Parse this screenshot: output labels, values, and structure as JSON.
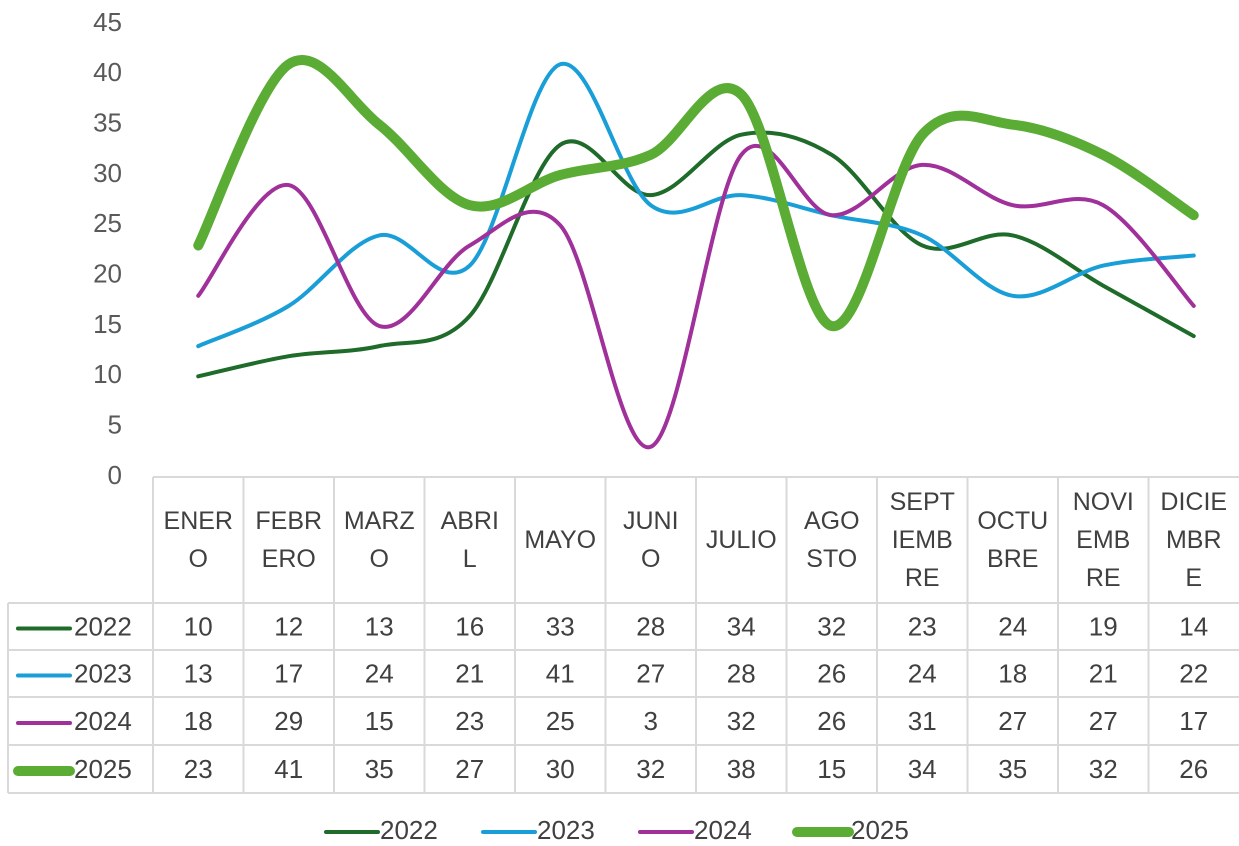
{
  "chart_data": {
    "type": "line",
    "categories": [
      "ENERO",
      "FEBRERO",
      "MARZO",
      "ABRIL",
      "MAYO",
      "JUNIO",
      "JULIO",
      "AGOSTO",
      "SEPTIEMBRE",
      "OCTUBRE",
      "NOVIEMBRE",
      "DICIEMBRE"
    ],
    "series": [
      {
        "name": "2022",
        "color": "#1e6b2a",
        "width": 4,
        "values": [
          10,
          12,
          13,
          16,
          33,
          28,
          34,
          32,
          23,
          24,
          19,
          14
        ]
      },
      {
        "name": "2023",
        "color": "#1a9ed8",
        "width": 4,
        "values": [
          13,
          17,
          24,
          21,
          41,
          27,
          28,
          26,
          24,
          18,
          21,
          22
        ]
      },
      {
        "name": "2024",
        "color": "#a0309a",
        "width": 4,
        "values": [
          18,
          29,
          15,
          23,
          25,
          3,
          32,
          26,
          31,
          27,
          27,
          17
        ]
      },
      {
        "name": "2025",
        "color": "#5aac34",
        "width": 10,
        "values": [
          23,
          41,
          35,
          27,
          30,
          32,
          38,
          15,
          34,
          35,
          32,
          26
        ]
      }
    ],
    "ylim": [
      0,
      45
    ],
    "yticks": [
      0,
      5,
      10,
      15,
      20,
      25,
      30,
      35,
      40,
      45
    ],
    "smooth": true,
    "legend": "bottom"
  }
}
